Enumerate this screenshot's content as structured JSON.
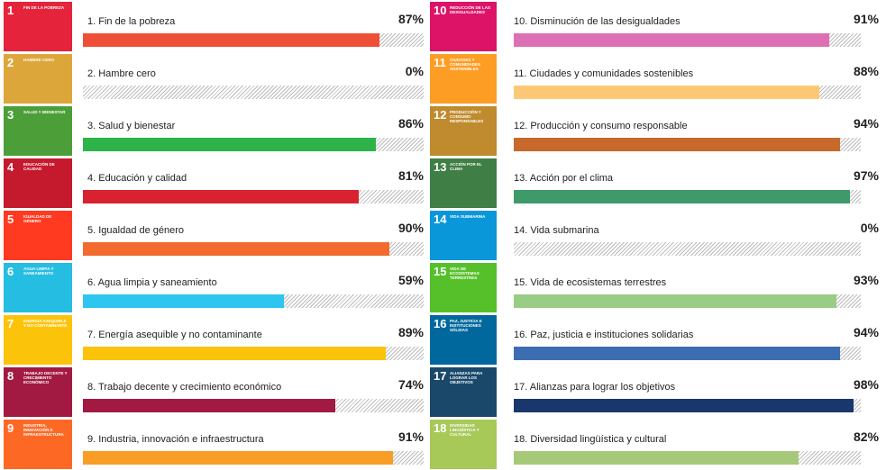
{
  "chart_data": {
    "type": "hbar",
    "categories": [
      "1. Fin de la pobreza",
      "2. Hambre cero",
      "3. Salud y bienestar",
      "4. Educación y calidad",
      "5. Igualdad de género",
      "6.  Agua limpia y saneamiento",
      "7. Energía asequible y no contaminante",
      "8. Trabajo decente y crecimiento económico",
      "9. Industria, innovación e infraestructura",
      "10. Disminución de las desigualdades",
      "11. Ciudades y comunidades sostenibles",
      "12. Producción y consumo responsable",
      "13.  Acción por el clima",
      "14. Vida submarina",
      "15. Vida de ecosistemas terrestres",
      "16. Paz, justicia e instituciones solidarias",
      "17. Alianzas para lograr los objetivos",
      "18. Diversidad lingüística y cultural"
    ],
    "values": [
      87,
      0,
      86,
      81,
      90,
      59,
      89,
      74,
      91,
      91,
      88,
      94,
      97,
      0,
      93,
      94,
      98,
      82
    ],
    "value_labels": [
      "87%",
      "0%",
      "86%",
      "81%",
      "90%",
      "59%",
      "89%",
      "74%",
      "91%",
      "91%",
      "88%",
      "94%",
      "97%",
      "0%",
      "93%",
      "94%",
      "98%",
      "82%"
    ],
    "colors": [
      "#ef4f37",
      "#dda63a",
      "#2db34a",
      "#d9222f",
      "#f26a2e",
      "#2ec5ee",
      "#fcc30b",
      "#a21942",
      "#f99d26",
      "#dd6fb4",
      "#fdc875",
      "#c8692b",
      "#3f9a6a",
      "#0a97d9",
      "#99cd85",
      "#3c6db3",
      "#19376d",
      "#a5c979"
    ],
    "xlim": [
      0,
      100
    ],
    "icon_numbers": [
      1,
      2,
      3,
      4,
      5,
      6,
      7,
      8,
      9,
      10,
      11,
      12,
      13,
      14,
      15,
      16,
      17,
      18
    ],
    "icon_labels": [
      "FIN DE LA POBREZA",
      "HAMBRE CERO",
      "SALUD Y BIENESTAR",
      "EDUCACIÓN DE CALIDAD",
      "IGUALDAD DE GÉNERO",
      "AGUA LIMPIA Y SANEAMIENTO",
      "ENERGÍA ASEQUIBLE Y NO CONTAMINANTE",
      "TRABAJO DECENTE Y CRECIMIENTO ECONÓMICO",
      "INDUSTRIA, INNOVACIÓN E INFRAESTRUCTURA",
      "REDUCCIÓN DE LAS DESIGUALDADES",
      "CIUDADES Y COMUNIDADES SOSTENIBLES",
      "PRODUCCIÓN Y CONSUMO RESPONSABLES",
      "ACCIÓN POR EL CLIMA",
      "VIDA SUBMARINA",
      "VIDA DE ECOSISTEMAS TERRESTRES",
      "PAZ, JUSTICIA E INSTITUCIONES SÓLIDAS",
      "ALIANZAS PARA LOGRAR LOS OBJETIVOS",
      "DIVERSIDAD LINGÜÍSTICA Y CULTURAL"
    ],
    "icon_colors": [
      "#e5243b",
      "#dda63a",
      "#4c9f38",
      "#c5192d",
      "#ff3a21",
      "#26bde2",
      "#fcc30b",
      "#a21942",
      "#fd6925",
      "#dd1367",
      "#fd9d24",
      "#bf8b2e",
      "#3f7e44",
      "#0a97d9",
      "#56c02b",
      "#00689d",
      "#19486a",
      "#a7c958"
    ]
  }
}
